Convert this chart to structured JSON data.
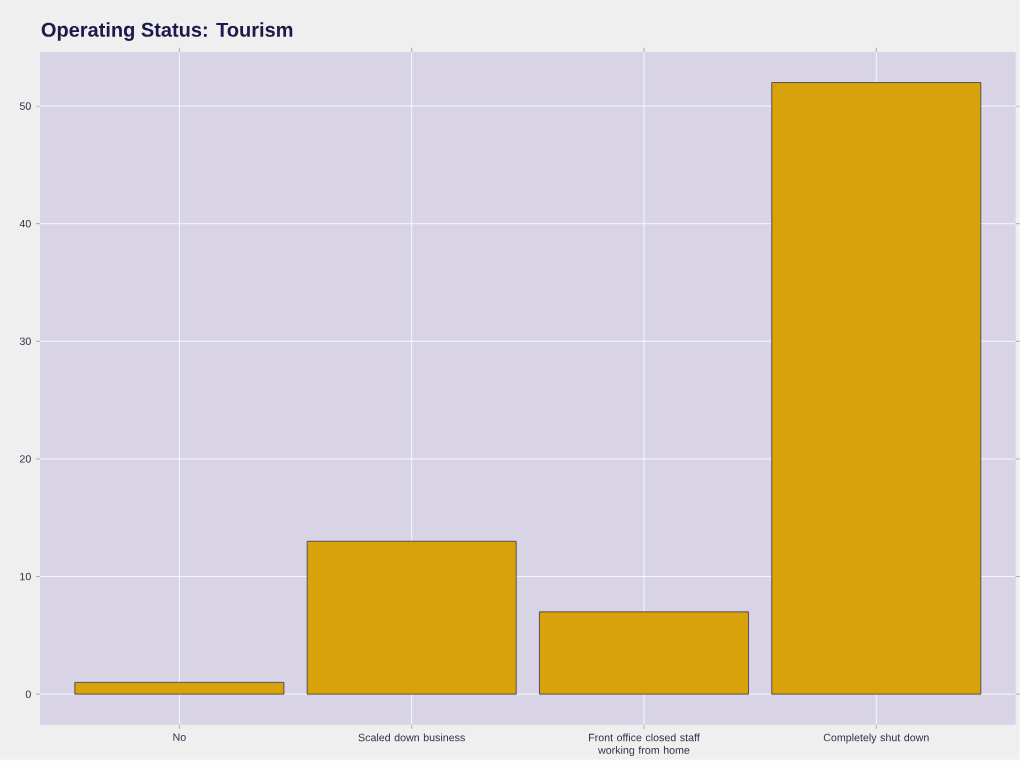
{
  "chart_data": {
    "type": "bar",
    "title": "Operating Status: Tourism",
    "categories": [
      "No",
      "Scaled down business",
      "Front office closed staff working from home",
      "Completely shut down"
    ],
    "values": [
      1,
      13,
      7,
      52
    ],
    "color": "#d8a20a",
    "ylim": [
      -2.6,
      54.6
    ],
    "yticks": [
      0,
      10,
      20,
      30,
      40,
      50
    ],
    "grid": true
  }
}
